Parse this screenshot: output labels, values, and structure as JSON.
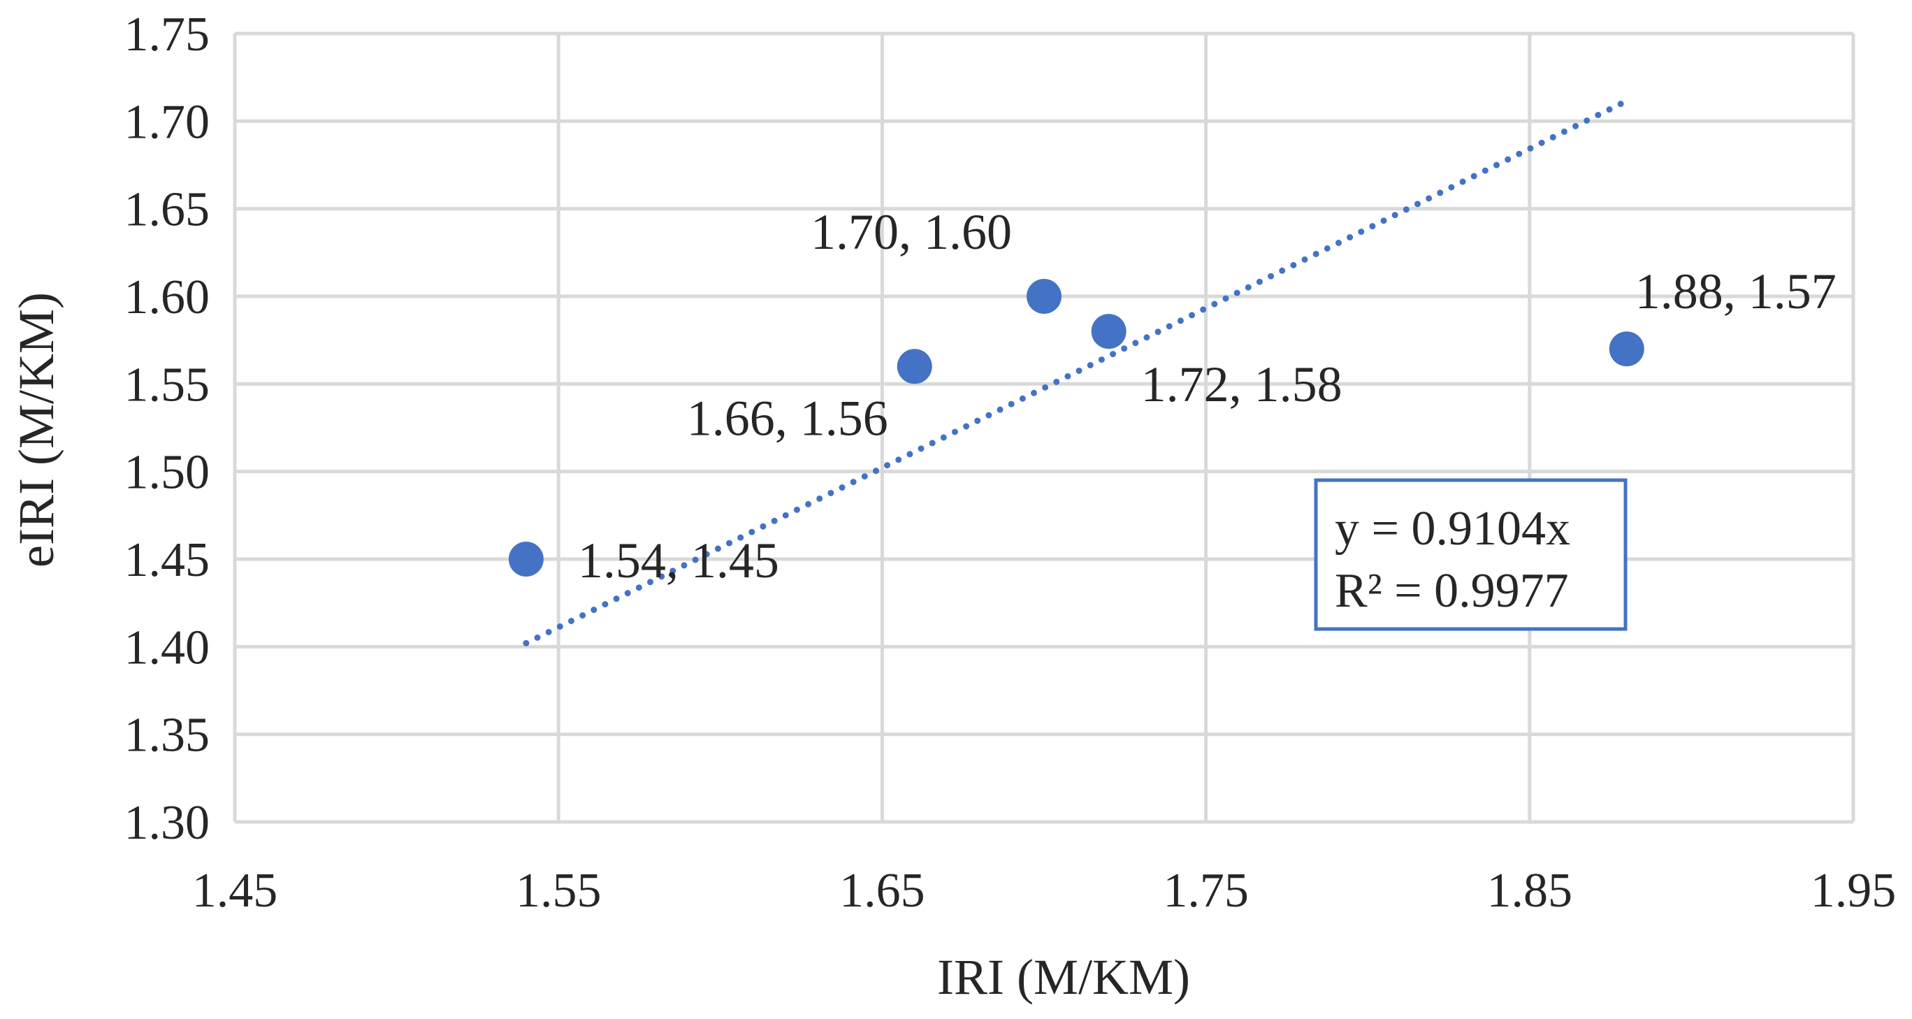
{
  "chart_data": {
    "type": "scatter",
    "title": "",
    "xlabel": "IRI (M/KM)",
    "ylabel": "eIRI (M/KM)",
    "xlim": [
      1.45,
      1.95
    ],
    "ylim": [
      1.3,
      1.75
    ],
    "x_ticks": [
      "1.45",
      "1.55",
      "1.65",
      "1.75",
      "1.85",
      "1.95"
    ],
    "y_ticks": [
      "1.30",
      "1.35",
      "1.40",
      "1.45",
      "1.50",
      "1.55",
      "1.60",
      "1.65",
      "1.70",
      "1.75"
    ],
    "grid": true,
    "points": [
      {
        "x": 1.54,
        "y": 1.45,
        "label": "1.54, 1.45",
        "label_position": "right"
      },
      {
        "x": 1.66,
        "y": 1.56,
        "label": "1.66, 1.56",
        "label_position": "below-left"
      },
      {
        "x": 1.7,
        "y": 1.6,
        "label": "1.70, 1.60",
        "label_position": "above-left"
      },
      {
        "x": 1.72,
        "y": 1.58,
        "label": "1.72, 1.58",
        "label_position": "below-right"
      },
      {
        "x": 1.88,
        "y": 1.57,
        "label": "1.88, 1.57",
        "label_position": "above-right"
      }
    ],
    "trendline": {
      "type": "linear-through-origin",
      "slope": 0.9104,
      "x_range": [
        1.54,
        1.88
      ],
      "style": "dotted",
      "equation": "y = 0.9104x",
      "r_squared": "R² = 0.9977"
    },
    "colors": {
      "marker": "#4472c4",
      "trendline": "#4472c4",
      "equation_border": "#4472c4",
      "grid": "#d9d9d9",
      "text": "#262626"
    }
  }
}
